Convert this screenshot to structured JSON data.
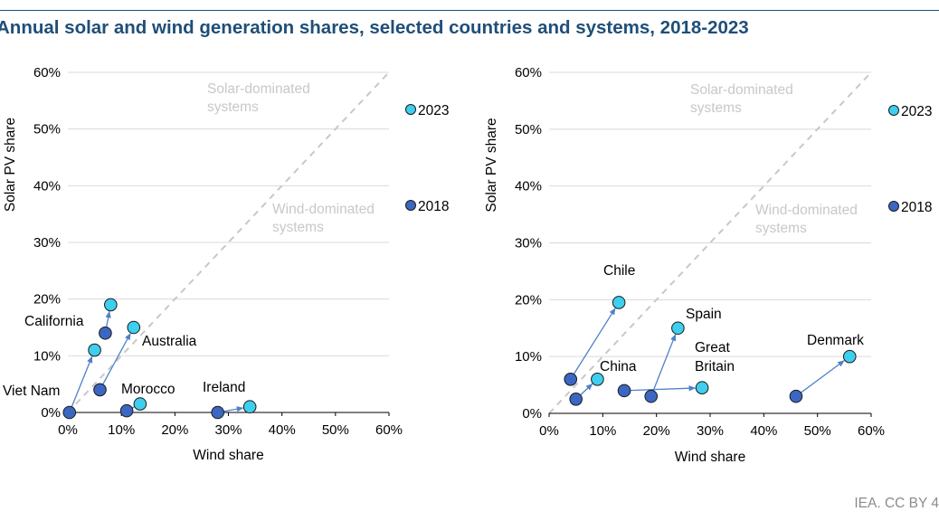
{
  "header": {
    "title": "Annual solar and wind generation shares, selected countries and systems, 2018-2023"
  },
  "footer": {
    "credit": "IEA. CC BY 4"
  },
  "colors": {
    "title": "#1f4e79",
    "point_2023": "#3ecfef",
    "point_2018": "#3b67c2",
    "arrow": "#4f81c7",
    "diagonal": "#c8c8c8",
    "region_text": "#c8c8c8",
    "gridline": "#d9d9d9"
  },
  "chart_data": [
    {
      "type": "scatter",
      "xlabel": "Wind share",
      "ylabel": "Solar PV share",
      "xlim": [
        0,
        60
      ],
      "ylim": [
        0,
        60
      ],
      "x_ticks": [
        "0%",
        "10%",
        "20%",
        "30%",
        "40%",
        "50%",
        "60%"
      ],
      "y_ticks": [
        "0%",
        "10%",
        "20%",
        "30%",
        "40%",
        "50%",
        "60%"
      ],
      "grid": "horizontal",
      "diagonal": "dashed y = x",
      "legend": {
        "placement": "right",
        "entries": [
          "2023",
          "2018"
        ]
      },
      "region_labels": [
        {
          "lines": [
            "Solar-dominated",
            "systems"
          ]
        },
        {
          "lines": [
            "Wind-dominated",
            "systems"
          ]
        }
      ],
      "points": [
        {
          "label": [
            "Viet Nam"
          ],
          "x2018": 0.3,
          "y2018": 0,
          "x2023": 5,
          "y2023": 11
        },
        {
          "label": [
            "California"
          ],
          "x2018": 7,
          "y2018": 14,
          "x2023": 8,
          "y2023": 19
        },
        {
          "label": [
            "Australia"
          ],
          "x2018": 6,
          "y2018": 4,
          "x2023": 12.3,
          "y2023": 15
        },
        {
          "label": [
            "Morocco"
          ],
          "x2018": 11,
          "y2018": 0.3,
          "x2023": 13.5,
          "y2023": 1.5
        },
        {
          "label": [
            "Ireland"
          ],
          "x2018": 28,
          "y2018": 0,
          "x2023": 34,
          "y2023": 1
        }
      ]
    },
    {
      "type": "scatter",
      "xlabel": "Wind share",
      "ylabel": "Solar PV share",
      "xlim": [
        0,
        60
      ],
      "ylim": [
        0,
        60
      ],
      "x_ticks": [
        "0%",
        "10%",
        "20%",
        "30%",
        "40%",
        "50%",
        "60%"
      ],
      "y_ticks": [
        "0%",
        "10%",
        "20%",
        "30%",
        "40%",
        "50%",
        "60%"
      ],
      "grid": "horizontal",
      "diagonal": "dashed y = x",
      "legend": {
        "placement": "right",
        "entries": [
          "2023",
          "2018"
        ]
      },
      "region_labels": [
        {
          "lines": [
            "Solar-dominated",
            "systems"
          ]
        },
        {
          "lines": [
            "Wind-dominated",
            "systems"
          ]
        }
      ],
      "points": [
        {
          "label": [
            "Chile"
          ],
          "x2018": 4,
          "y2018": 6,
          "x2023": 13,
          "y2023": 19.5
        },
        {
          "label": [
            "China"
          ],
          "x2018": 5,
          "y2018": 2.5,
          "x2023": 9,
          "y2023": 6
        },
        {
          "label": [
            "Spain"
          ],
          "x2018": 19,
          "y2018": 3,
          "x2023": 24,
          "y2023": 15
        },
        {
          "label": [
            "Great",
            "Britain"
          ],
          "x2018": 14,
          "y2018": 4,
          "x2023": 28.5,
          "y2023": 4.5
        },
        {
          "label": [
            "Denmark"
          ],
          "x2018": 46,
          "y2018": 3,
          "x2023": 56,
          "y2023": 10
        }
      ]
    }
  ]
}
